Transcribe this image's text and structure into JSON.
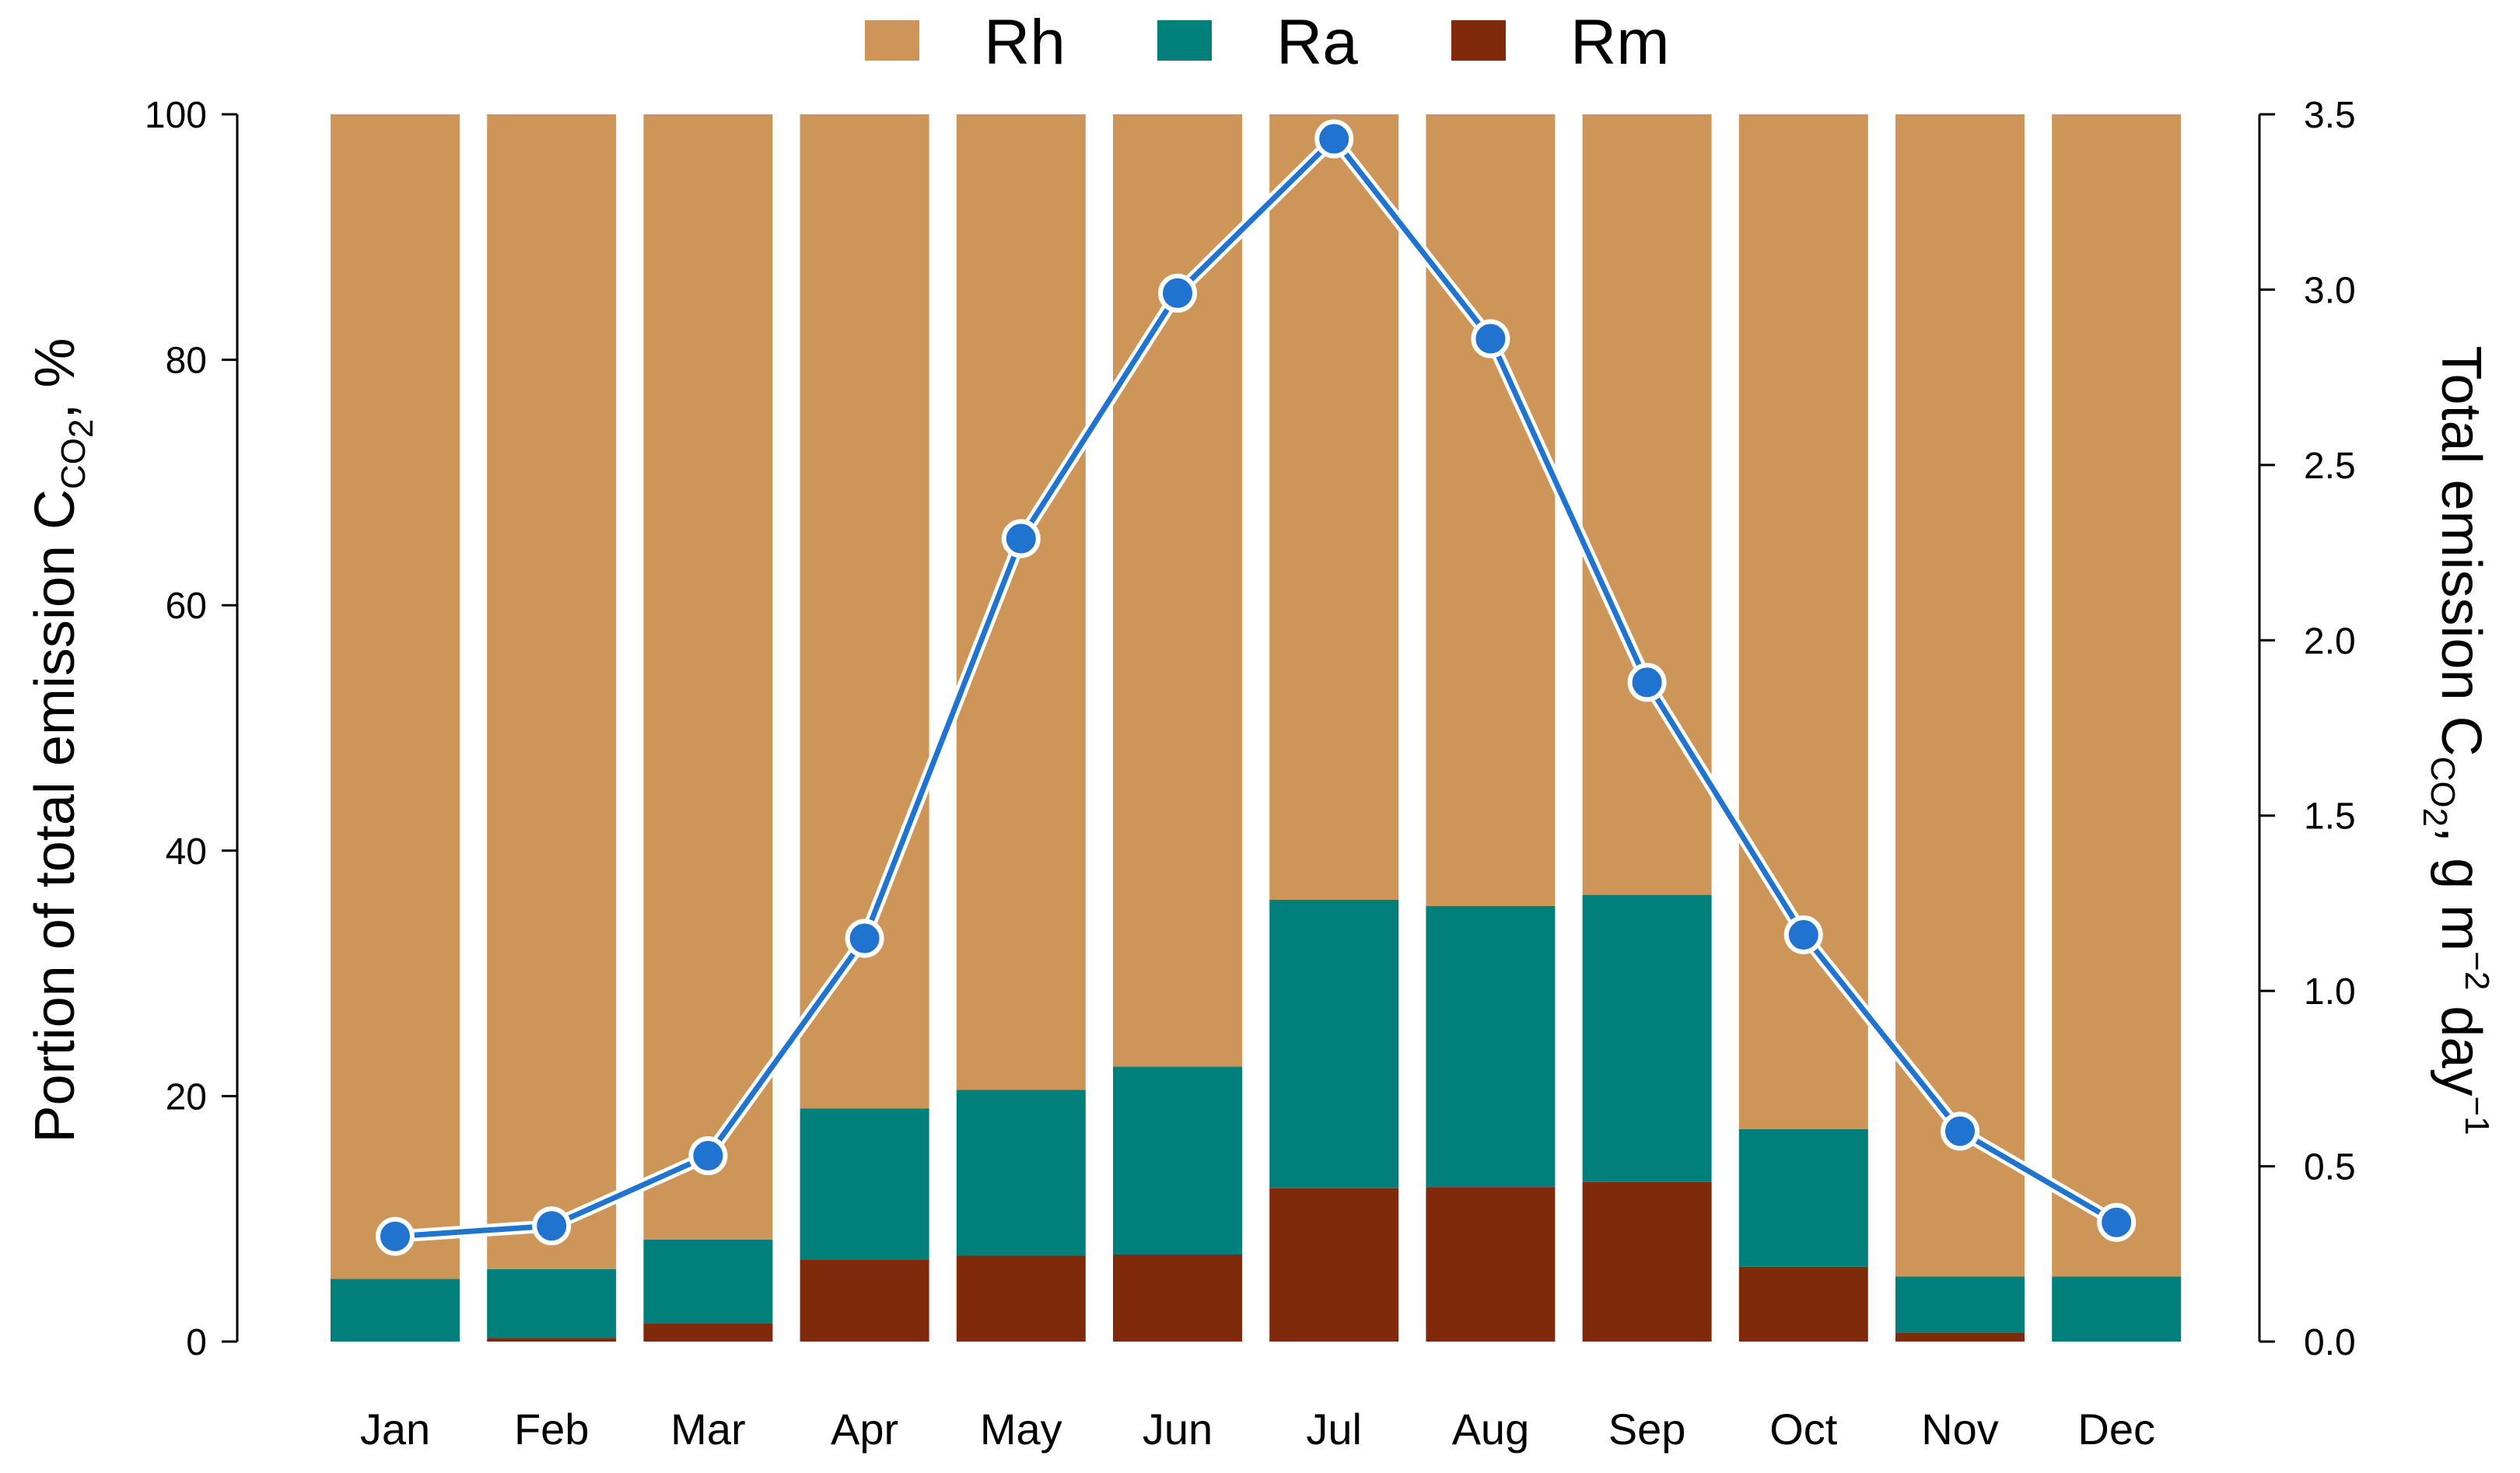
{
  "chart_data": {
    "type": "bar",
    "stacked": true,
    "categories": [
      "Jan",
      "Feb",
      "Mar",
      "Apr",
      "May",
      "Jun",
      "Jul",
      "Aug",
      "Sep",
      "Oct",
      "Nov",
      "Dec"
    ],
    "series": [
      {
        "name": "Rm",
        "color": "#7f2a0a",
        "values": [
          0,
          0.3,
          1.5,
          6.7,
          7.0,
          7.1,
          12.5,
          12.6,
          13.0,
          6.1,
          0.7,
          0
        ]
      },
      {
        "name": "Ra",
        "color": "#007f7b",
        "values": [
          5.1,
          5.6,
          6.8,
          12.3,
          13.5,
          15.3,
          23.5,
          22.9,
          23.4,
          11.2,
          4.6,
          5.3
        ]
      },
      {
        "name": "Rh",
        "color": "#cd9658",
        "values": [
          94.9,
          94.1,
          91.7,
          81.0,
          79.5,
          77.6,
          64.0,
          64.5,
          63.6,
          82.7,
          94.7,
          94.7
        ]
      }
    ],
    "line_series": {
      "name": "Total emission",
      "color": "#2173d0",
      "axis": "right",
      "values": [
        0.3,
        0.33,
        0.53,
        1.15,
        2.29,
        2.99,
        3.43,
        2.86,
        1.88,
        1.16,
        0.6,
        0.34
      ]
    },
    "legend": {
      "position": "top",
      "entries": [
        "Rh",
        "Ra",
        "Rm"
      ]
    },
    "ylim": [
      0,
      100
    ],
    "yticks": [
      "0",
      "20",
      "40",
      "60",
      "80",
      "100"
    ],
    "y2lim": [
      0,
      3.5
    ],
    "y2ticks": [
      "0.0",
      "0.5",
      "1.0",
      "1.5",
      "2.0",
      "2.5",
      "3.0",
      "3.5"
    ],
    "ylabel": {
      "main": "Portion of total emission C",
      "sub": "CO",
      "sub2": "2",
      "suffix": ", %"
    },
    "y2label": {
      "main": "Total emission C",
      "sub": "CO",
      "sub2": "2",
      "mid": ", g m",
      "sup1": "−2",
      "mid2": " day",
      "sup2": "−1"
    }
  }
}
